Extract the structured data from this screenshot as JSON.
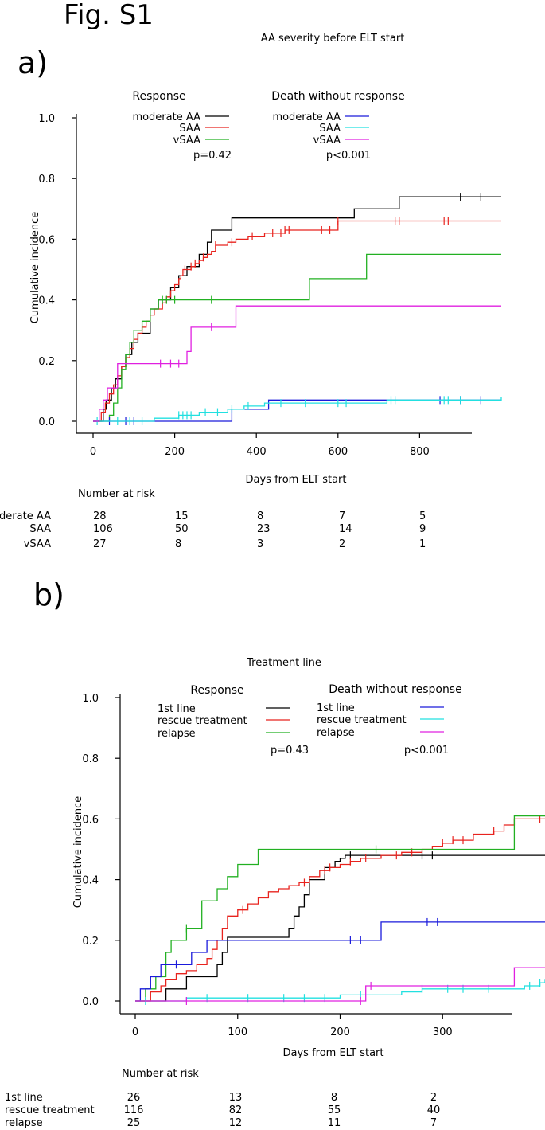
{
  "figure_title": "Fig. S1",
  "panels": {
    "a": {
      "label": "a)",
      "title": "AA severity before ELT start",
      "legend_response_title": "Response",
      "legend_death_title": "Death without response",
      "legend_response_items": [
        "moderate AA",
        "SAA",
        "vSAA"
      ],
      "legend_death_items": [
        "moderate AA",
        "SAA",
        "vSAA"
      ],
      "p_response": "p=0.42",
      "p_death": "p<0.001",
      "risk_title": "Number at risk",
      "risk_rows": [
        {
          "label": "moderate AA",
          "values": [
            "28",
            "15",
            "8",
            "7",
            "5"
          ]
        },
        {
          "label": "SAA",
          "values": [
            "106",
            "50",
            "23",
            "14",
            "9"
          ]
        },
        {
          "label": "vSAA",
          "values": [
            "27",
            "8",
            "3",
            "2",
            "1"
          ]
        }
      ]
    },
    "b": {
      "label": "b)",
      "title": "Treatment line",
      "legend_response_title": "Response",
      "legend_death_title": "Death without response",
      "legend_response_items": [
        "1st line",
        "rescue treatment",
        "relapse"
      ],
      "legend_death_items": [
        "1st line",
        "rescue treatment",
        "relapse"
      ],
      "p_response": "p=0.43",
      "p_death": "p<0.001",
      "risk_title": "Number at risk",
      "risk_rows": [
        {
          "label": "1st line",
          "values": [
            "26",
            "13",
            "8",
            "2"
          ]
        },
        {
          "label": "rescue treatment",
          "values": [
            "116",
            "82",
            "55",
            "40"
          ]
        },
        {
          "label": "relapse",
          "values": [
            "25",
            "12",
            "11",
            "7"
          ]
        }
      ]
    }
  },
  "colors": {
    "moderate_aa_response": "#000000",
    "saa_response": "#e8231e",
    "vsaa_response": "#22b022",
    "moderate_aa_death": "#1a1adb",
    "saa_death": "#22e0e0",
    "vsaa_death": "#e020e0"
  },
  "chart_data": [
    {
      "type": "line",
      "step": true,
      "title": "AA severity before ELT start",
      "xlabel": "Days from ELT start",
      "ylabel": "Cumulative incidence",
      "xlim": [
        0,
        1000
      ],
      "ylim": [
        0,
        1.0
      ],
      "xticks": [
        "0",
        "200",
        "400",
        "600",
        "800"
      ],
      "yticks": [
        "0.0",
        "0.2",
        "0.4",
        "0.6",
        "0.8",
        "1.0"
      ],
      "xtick_values": [
        0,
        200,
        400,
        600,
        800
      ],
      "ytick_values": [
        0,
        0.2,
        0.4,
        0.6,
        0.8,
        1.0
      ],
      "series": [
        {
          "name": "moderate AA",
          "group": "Response",
          "color": "#000000",
          "x": [
            0,
            25,
            32,
            45,
            55,
            70,
            80,
            95,
            110,
            140,
            160,
            190,
            210,
            230,
            260,
            280,
            290,
            300,
            340,
            640,
            750,
            1000
          ],
          "y": [
            0,
            0.04,
            0.07,
            0.11,
            0.14,
            0.18,
            0.22,
            0.26,
            0.29,
            0.37,
            0.4,
            0.44,
            0.48,
            0.51,
            0.55,
            0.59,
            0.63,
            0.63,
            0.67,
            0.7,
            0.74,
            0.74
          ],
          "censor_x": [
            900,
            950
          ]
        },
        {
          "name": "SAA",
          "group": "Response",
          "color": "#e8231e",
          "x": [
            0,
            20,
            30,
            40,
            50,
            60,
            70,
            80,
            90,
            100,
            110,
            120,
            130,
            140,
            150,
            170,
            180,
            190,
            200,
            210,
            215,
            220,
            230,
            240,
            250,
            260,
            270,
            280,
            290,
            300,
            330,
            350,
            380,
            420,
            470,
            600,
            1000
          ],
          "y": [
            0,
            0.03,
            0.06,
            0.09,
            0.12,
            0.15,
            0.18,
            0.21,
            0.24,
            0.27,
            0.29,
            0.31,
            0.33,
            0.35,
            0.37,
            0.39,
            0.41,
            0.43,
            0.45,
            0.47,
            0.48,
            0.5,
            0.5,
            0.51,
            0.52,
            0.53,
            0.54,
            0.55,
            0.56,
            0.58,
            0.59,
            0.6,
            0.61,
            0.62,
            0.63,
            0.66,
            0.66
          ],
          "censor_x": [
            225,
            240,
            250,
            270,
            300,
            340,
            390,
            440,
            460,
            470,
            480,
            560,
            580,
            600,
            740,
            750,
            860,
            870
          ]
        },
        {
          "name": "vSAA",
          "group": "Response",
          "color": "#22b022",
          "x": [
            0,
            40,
            50,
            60,
            70,
            80,
            90,
            100,
            120,
            140,
            160,
            170,
            530,
            670,
            1000
          ],
          "y": [
            0,
            0.02,
            0.06,
            0.11,
            0.17,
            0.22,
            0.26,
            0.3,
            0.33,
            0.37,
            0.4,
            0.4,
            0.47,
            0.55,
            0.55
          ],
          "censor_x": [
            170,
            180,
            200,
            290
          ]
        },
        {
          "name": "moderate AA",
          "group": "Death without response",
          "color": "#1a1adb",
          "x": [
            0,
            300,
            340,
            430,
            1000
          ],
          "y": [
            0,
            0,
            0.04,
            0.07,
            0.07
          ],
          "censor_x": [
            40,
            80,
            100,
            850,
            900,
            950
          ]
        },
        {
          "name": "SAA",
          "group": "Death without response",
          "color": "#22e0e0",
          "x": [
            0,
            150,
            210,
            260,
            330,
            370,
            420,
            720,
            1000
          ],
          "y": [
            0,
            0.01,
            0.02,
            0.03,
            0.04,
            0.05,
            0.06,
            0.07,
            0.08
          ],
          "censor_x": [
            10,
            60,
            90,
            120,
            210,
            220,
            230,
            240,
            275,
            305,
            340,
            380,
            460,
            520,
            600,
            620,
            730,
            740,
            860,
            870,
            900
          ]
        },
        {
          "name": "vSAA",
          "group": "Death without response",
          "color": "#e020e0",
          "x": [
            0,
            15,
            25,
            35,
            60,
            230,
            240,
            350,
            1000
          ],
          "y": [
            0,
            0.04,
            0.07,
            0.11,
            0.19,
            0.23,
            0.31,
            0.38,
            0.38
          ],
          "censor_x": [
            165,
            190,
            210,
            290
          ]
        }
      ],
      "legend": "top",
      "annotations": [
        "p=0.42",
        "p<0.001"
      ]
    },
    {
      "type": "line",
      "step": true,
      "title": "Treatment line",
      "xlabel": "Days from ELT start",
      "ylabel": "Cumulative incidence",
      "xlim": [
        0,
        400
      ],
      "ylim": [
        0,
        1.0
      ],
      "xticks": [
        "0",
        "100",
        "200",
        "300"
      ],
      "yticks": [
        "0.0",
        "0.2",
        "0.4",
        "0.6",
        "0.8",
        "1.0"
      ],
      "xtick_values": [
        0,
        100,
        200,
        300
      ],
      "ytick_values": [
        0,
        0.2,
        0.4,
        0.6,
        0.8,
        1.0
      ],
      "series": [
        {
          "name": "1st line",
          "group": "Response",
          "color": "#000000",
          "x": [
            0,
            30,
            40,
            50,
            80,
            85,
            90,
            105,
            150,
            155,
            160,
            165,
            170,
            185,
            195,
            200,
            205,
            220,
            400
          ],
          "y": [
            0,
            0.04,
            0.04,
            0.08,
            0.12,
            0.16,
            0.21,
            0.21,
            0.24,
            0.28,
            0.31,
            0.35,
            0.4,
            0.44,
            0.46,
            0.47,
            0.48,
            0.48,
            0.48
          ],
          "censor_x": [
            210,
            280,
            290
          ]
        },
        {
          "name": "rescue treatment",
          "group": "Response",
          "color": "#e8231e",
          "x": [
            0,
            15,
            25,
            30,
            40,
            50,
            60,
            70,
            75,
            80,
            85,
            90,
            100,
            110,
            120,
            130,
            140,
            150,
            160,
            170,
            180,
            190,
            200,
            210,
            220,
            240,
            260,
            280,
            290,
            300,
            310,
            330,
            350,
            360,
            370,
            400
          ],
          "y": [
            0,
            0.03,
            0.05,
            0.07,
            0.09,
            0.1,
            0.12,
            0.14,
            0.17,
            0.2,
            0.24,
            0.28,
            0.3,
            0.32,
            0.34,
            0.36,
            0.37,
            0.38,
            0.39,
            0.41,
            0.43,
            0.44,
            0.45,
            0.46,
            0.47,
            0.48,
            0.49,
            0.5,
            0.51,
            0.52,
            0.53,
            0.55,
            0.56,
            0.58,
            0.6,
            0.6
          ],
          "censor_x": [
            105,
            165,
            185,
            190,
            210,
            225,
            255,
            270,
            300,
            310,
            320,
            350,
            395
          ]
        },
        {
          "name": "relapse",
          "group": "Response",
          "color": "#22b022",
          "x": [
            0,
            10,
            20,
            30,
            35,
            50,
            65,
            80,
            90,
            100,
            120,
            230,
            370,
            400
          ],
          "y": [
            0,
            0.04,
            0.08,
            0.16,
            0.2,
            0.24,
            0.33,
            0.37,
            0.41,
            0.45,
            0.5,
            0.5,
            0.61,
            0.61
          ],
          "censor_x": [
            50,
            235
          ]
        },
        {
          "name": "1st line",
          "group": "Death without response",
          "color": "#1a1adb",
          "x": [
            0,
            5,
            15,
            25,
            55,
            70,
            90,
            240,
            400
          ],
          "y": [
            0,
            0.04,
            0.08,
            0.12,
            0.16,
            0.2,
            0.2,
            0.26,
            0.26
          ],
          "censor_x": [
            40,
            210,
            220,
            285,
            295
          ]
        },
        {
          "name": "rescue treatment",
          "group": "Death without response",
          "color": "#22e0e0",
          "x": [
            0,
            50,
            200,
            260,
            280,
            300,
            380,
            395,
            400
          ],
          "y": [
            0,
            0.01,
            0.02,
            0.03,
            0.04,
            0.04,
            0.05,
            0.06,
            0.07
          ],
          "censor_x": [
            10,
            70,
            110,
            145,
            165,
            185,
            220,
            280,
            305,
            320,
            345,
            385,
            395
          ]
        },
        {
          "name": "relapse",
          "group": "Death without response",
          "color": "#e020e0",
          "x": [
            0,
            220,
            225,
            370,
            400
          ],
          "y": [
            0,
            0,
            0.05,
            0.11,
            0.11
          ],
          "censor_x": [
            50,
            220,
            230
          ]
        }
      ],
      "legend": "top",
      "annotations": [
        "p=0.43",
        "p<0.001"
      ]
    }
  ]
}
